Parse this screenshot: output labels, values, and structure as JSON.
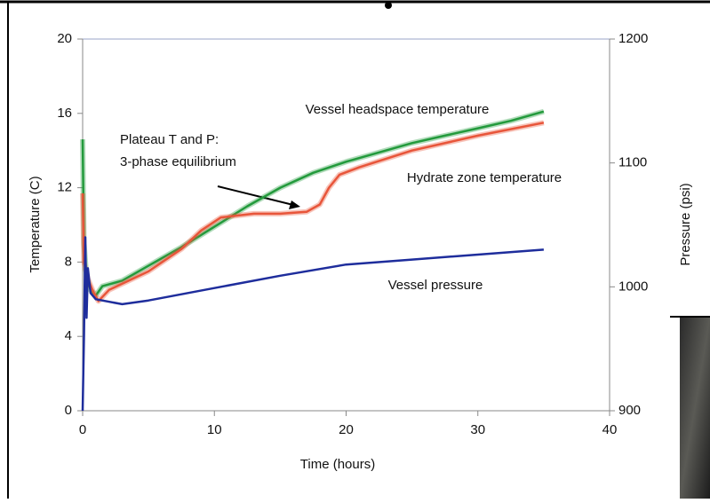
{
  "chart_data": {
    "type": "line",
    "xlabel": "Time (hours)",
    "ylabel": "Temperature (C)",
    "y2label": "Pressure (psi)",
    "xlim": [
      0,
      40
    ],
    "xticks": [
      0,
      10,
      20,
      30,
      40
    ],
    "ylim": [
      0,
      20
    ],
    "yticks": [
      0,
      4,
      8,
      12,
      16,
      20
    ],
    "y2lim": [
      900,
      1200
    ],
    "y2ticks": [
      900,
      1000,
      1100,
      1200
    ],
    "annotations": [
      "Plateau T and P:",
      "3-phase equilibrium"
    ],
    "series": [
      {
        "name": "Vessel headspace temperature",
        "color": "#239a3c",
        "x": [
          0,
          0.1,
          0.3,
          0.6,
          1,
          1.5,
          3,
          5,
          7.5,
          10,
          12.5,
          15,
          17.5,
          20,
          22.5,
          25,
          27.5,
          30,
          32.5,
          35
        ],
        "values": [
          14.6,
          9,
          7.2,
          6.5,
          6.2,
          6.7,
          7,
          7.8,
          8.8,
          9.9,
          11,
          12,
          12.8,
          13.4,
          13.9,
          14.4,
          14.8,
          15.2,
          15.6,
          16.1
        ]
      },
      {
        "name": "Hydrate zone temperature",
        "color": "#e8553a",
        "x": [
          0,
          0.1,
          0.4,
          0.8,
          1.2,
          2,
          5,
          7.5,
          9,
          10.5,
          13,
          15,
          17,
          18,
          18.7,
          19.5,
          21,
          25,
          30,
          35
        ],
        "values": [
          11.7,
          8,
          7.1,
          6.4,
          5.9,
          6.5,
          7.5,
          8.7,
          9.7,
          10.4,
          10.6,
          10.6,
          10.7,
          11.1,
          12,
          12.7,
          13.1,
          14,
          14.8,
          15.5
        ]
      },
      {
        "name": "Vessel pressure",
        "color": "#1e2d9c",
        "axis": "y2",
        "x": [
          0,
          0.1,
          0.2,
          0.3,
          0.4,
          0.6,
          1,
          3,
          5,
          10,
          15,
          20,
          25,
          30,
          35
        ],
        "values": [
          900,
          960,
          1040,
          975,
          1015,
          995,
          990,
          986,
          989,
          999,
          1009,
          1018,
          1022,
          1026,
          1030
        ]
      }
    ]
  }
}
